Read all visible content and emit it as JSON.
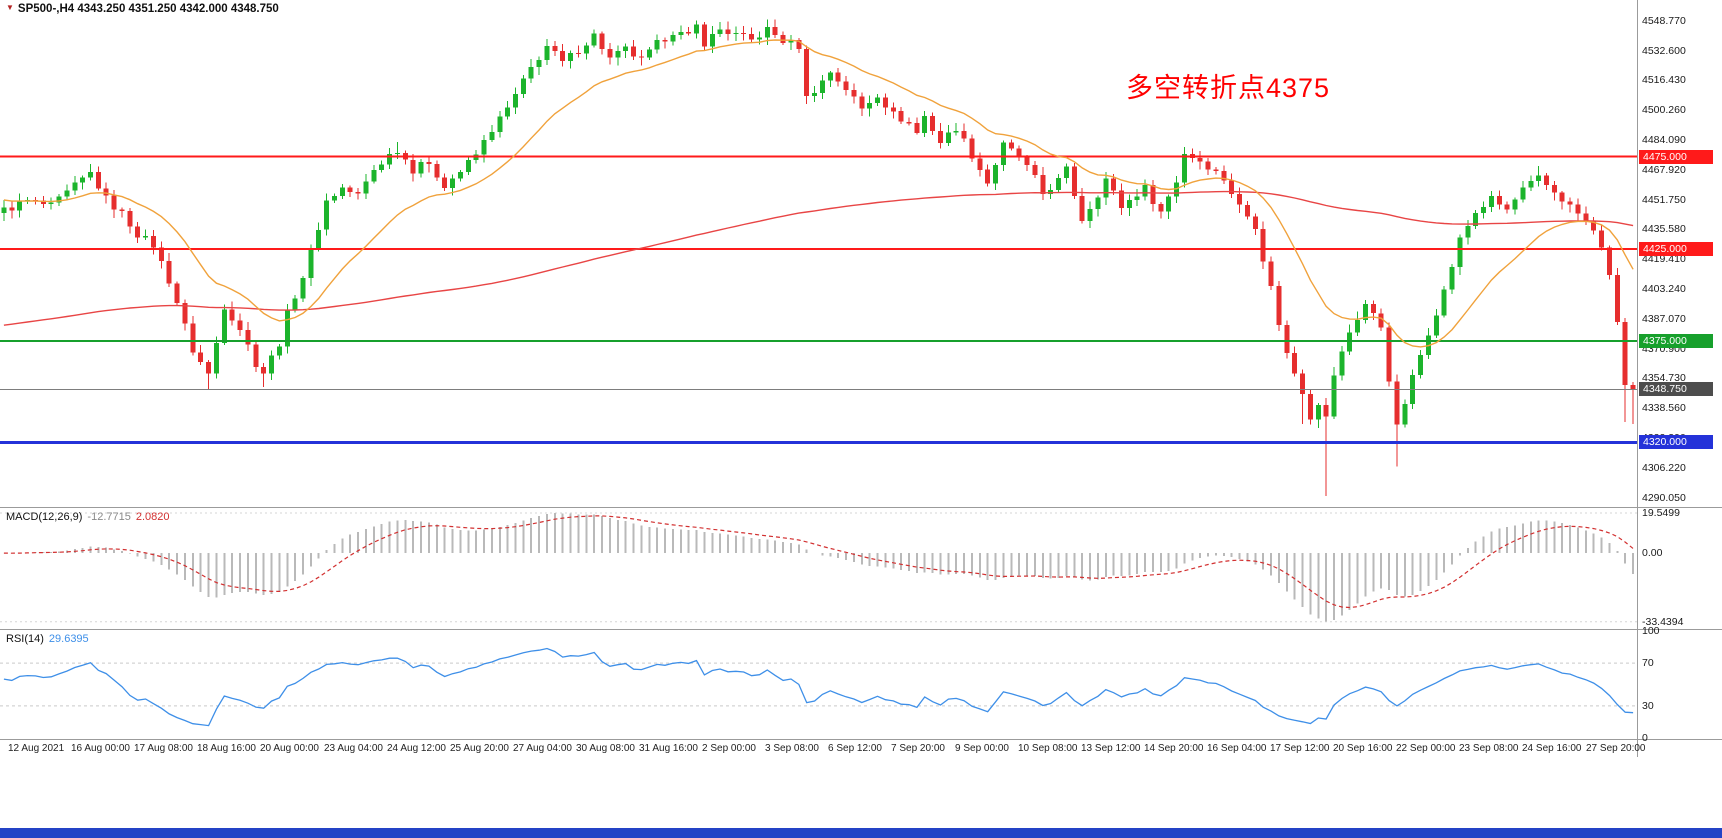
{
  "header": {
    "marker": "▼",
    "title": "SP500-,H4 4343.250 4351.250 4342.000 4348.750"
  },
  "annotation": {
    "text": "多空转折点4375",
    "color": "#ff0000"
  },
  "macd": {
    "label": "MACD(12,26,9)",
    "value_main": "-12.7715",
    "value_signal": "2.0820",
    "scale": [
      "19.5499",
      "0.00",
      "-33.4394"
    ]
  },
  "rsi": {
    "label": "RSI(14)",
    "value": "29.6395",
    "scale": [
      "100",
      "70",
      "30",
      "0"
    ]
  },
  "price_axis": {
    "labels": [
      "4548.770",
      "4532.600",
      "4516.430",
      "4500.260",
      "4484.090",
      "4467.920",
      "4451.750",
      "4435.580",
      "4419.410",
      "4403.240",
      "4387.070",
      "4370.900",
      "4354.730",
      "4338.560",
      "4322.390",
      "4306.220",
      "4290.050"
    ]
  },
  "time_axis": {
    "labels": [
      "12 Aug 2021",
      "16 Aug 00:00",
      "17 Aug 08:00",
      "18 Aug 16:00",
      "20 Aug 00:00",
      "23 Aug 04:00",
      "24 Aug 12:00",
      "25 Aug 20:00",
      "27 Aug 04:00",
      "30 Aug 08:00",
      "31 Aug 16:00",
      "2 Sep 00:00",
      "3 Sep 08:00",
      "6 Sep 12:00",
      "7 Sep 20:00",
      "9 Sep 00:00",
      "10 Sep 08:00",
      "13 Sep 12:00",
      "14 Sep 20:00",
      "16 Sep 04:00",
      "17 Sep 12:00",
      "20 Sep 16:00",
      "22 Sep 00:00",
      "23 Sep 08:00",
      "24 Sep 16:00",
      "27 Sep 20:00"
    ]
  },
  "chart_data": [
    {
      "type": "candlestick",
      "title": "SP500- H4",
      "bars": 208,
      "display_ohlc": {
        "open": "4343.250",
        "high": "4351.250",
        "low": "4342.000",
        "close": "4348.750"
      },
      "last_close": 4348.75,
      "y_range": {
        "min": 4285,
        "max": 4560
      },
      "noise_amp": 2.2,
      "up_color": "#1cb42c",
      "down_color": "#e62e2e",
      "anchors": [
        [
          0,
          4446
        ],
        [
          3,
          4451
        ],
        [
          6,
          4448
        ],
        [
          9,
          4459
        ],
        [
          11,
          4466
        ],
        [
          13,
          4452
        ],
        [
          15,
          4444
        ],
        [
          17,
          4433
        ],
        [
          19,
          4427
        ],
        [
          21,
          4408
        ],
        [
          22,
          4396
        ],
        [
          24,
          4370
        ],
        [
          26,
          4357
        ],
        [
          27,
          4374
        ],
        [
          28,
          4394
        ],
        [
          30,
          4382
        ],
        [
          32,
          4363
        ],
        [
          33,
          4358
        ],
        [
          35,
          4374
        ],
        [
          36,
          4390
        ],
        [
          38,
          4410
        ],
        [
          40,
          4437
        ],
        [
          41,
          4451
        ],
        [
          43,
          4458
        ],
        [
          45,
          4454
        ],
        [
          47,
          4468
        ],
        [
          49,
          4476
        ],
        [
          50,
          4479
        ],
        [
          52,
          4468
        ],
        [
          53,
          4473
        ],
        [
          55,
          4465
        ],
        [
          56,
          4460
        ],
        [
          58,
          4467
        ],
        [
          60,
          4476
        ],
        [
          62,
          4490
        ],
        [
          64,
          4501
        ],
        [
          65,
          4508
        ],
        [
          67,
          4523
        ],
        [
          69,
          4535
        ],
        [
          71,
          4526
        ],
        [
          73,
          4533
        ],
        [
          75,
          4541
        ],
        [
          77,
          4528
        ],
        [
          79,
          4533
        ],
        [
          81,
          4527
        ],
        [
          83,
          4536
        ],
        [
          85,
          4543
        ],
        [
          87,
          4540
        ],
        [
          88,
          4546
        ],
        [
          89,
          4537
        ],
        [
          91,
          4544
        ],
        [
          93,
          4541
        ],
        [
          95,
          4538
        ],
        [
          97,
          4544
        ],
        [
          99,
          4538
        ],
        [
          101,
          4535
        ],
        [
          102,
          4507
        ],
        [
          104,
          4516
        ],
        [
          105,
          4521
        ],
        [
          107,
          4512
        ],
        [
          109,
          4501
        ],
        [
          111,
          4509
        ],
        [
          113,
          4498
        ],
        [
          115,
          4493
        ],
        [
          116,
          4488
        ],
        [
          117,
          4497
        ],
        [
          119,
          4483
        ],
        [
          121,
          4491
        ],
        [
          123,
          4476
        ],
        [
          125,
          4461
        ],
        [
          127,
          4481
        ],
        [
          129,
          4475
        ],
        [
          131,
          4463
        ],
        [
          132,
          4455
        ],
        [
          134,
          4462
        ],
        [
          135,
          4468
        ],
        [
          137,
          4441
        ],
        [
          139,
          4455
        ],
        [
          140,
          4463
        ],
        [
          142,
          4448
        ],
        [
          144,
          4455
        ],
        [
          145,
          4458
        ],
        [
          147,
          4445
        ],
        [
          149,
          4462
        ],
        [
          150,
          4477
        ],
        [
          152,
          4473
        ],
        [
          153,
          4470
        ],
        [
          155,
          4463
        ],
        [
          157,
          4448
        ],
        [
          159,
          4438
        ],
        [
          160,
          4420
        ],
        [
          161,
          4404
        ],
        [
          162,
          4385
        ],
        [
          163,
          4368
        ],
        [
          165,
          4348
        ],
        [
          166,
          4334
        ],
        [
          167,
          4342
        ],
        [
          168,
          4333
        ],
        [
          169,
          4357
        ],
        [
          171,
          4380
        ],
        [
          173,
          4395
        ],
        [
          175,
          4383
        ],
        [
          176,
          4355
        ],
        [
          177,
          4328
        ],
        [
          179,
          4355
        ],
        [
          181,
          4380
        ],
        [
          183,
          4402
        ],
        [
          185,
          4430
        ],
        [
          187,
          4445
        ],
        [
          189,
          4452
        ],
        [
          191,
          4446
        ],
        [
          193,
          4457
        ],
        [
          195,
          4463
        ],
        [
          197,
          4456
        ],
        [
          199,
          4448
        ],
        [
          201,
          4440
        ],
        [
          202,
          4434
        ],
        [
          203,
          4427
        ],
        [
          204,
          4409
        ],
        [
          205,
          4386
        ],
        [
          206,
          4351
        ],
        [
          207,
          4349
        ]
      ],
      "wick_lows": {
        "26": 4349,
        "33": 4350,
        "165": 4330,
        "168": 4291,
        "177": 4307,
        "206": 4331,
        "207": 4330
      },
      "wick_highs": {
        "11": 4471,
        "50": 4483,
        "88": 4549,
        "91": 4548,
        "195": 4470
      },
      "levels": [
        {
          "value": 4475,
          "label": "4475.000",
          "color": "#ff1a1a",
          "width": 2
        },
        {
          "value": 4425,
          "label": "4425.000",
          "color": "#ff1a1a",
          "width": 2
        },
        {
          "value": 4375,
          "label": "4375.000",
          "color": "#17a02c",
          "width": 2
        },
        {
          "value": 4348.75,
          "label": "4348.750",
          "color": "#7d7d7d",
          "badge": "#4d4d4d",
          "width": 1
        },
        {
          "value": 4320,
          "label": "4320.000",
          "color": "#2432d9",
          "width": 3
        }
      ],
      "ma_fast": {
        "period": 18,
        "init": 4452,
        "color": "#f0a23c"
      },
      "ma_slow": {
        "period": 220,
        "init": 4383,
        "color": "#e84545"
      }
    },
    {
      "type": "bar",
      "name": "MACD",
      "params": "(12,26,9)",
      "fast": 12,
      "slow": 26,
      "signal": 9,
      "current_macd": -12.7715,
      "current_signal": 2.082,
      "scale_max": 19.5499,
      "scale_min": -33.4394,
      "hist_color": "#b9b9b9",
      "signal_color": "#d23030"
    },
    {
      "type": "line",
      "name": "RSI",
      "params": "(14)",
      "period": 14,
      "current": 29.6395,
      "levels": [
        70,
        30
      ],
      "scale": [
        100,
        70,
        30,
        0
      ],
      "line_color": "#3e8fe8"
    }
  ]
}
